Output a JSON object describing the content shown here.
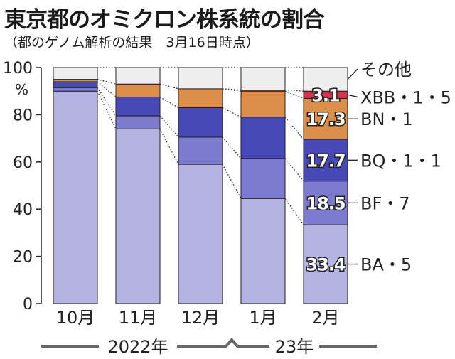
{
  "title": "東京都のオミクロン株系統の割合",
  "subtitle": "（都のゲノム解析の結果　3月16日時点）",
  "chart_data": {
    "type": "bar",
    "stacked": true,
    "ylim": [
      0,
      100
    ],
    "yticks": [
      0,
      20,
      40,
      60,
      80,
      100
    ],
    "yunit": "%",
    "categories": [
      "10月",
      "11月",
      "12月",
      "1月",
      "2月"
    ],
    "year_labels": [
      {
        "label": "2022年",
        "from": 0,
        "to": 2
      },
      {
        "label": "23年",
        "from": 3,
        "to": 4
      }
    ],
    "series": [
      {
        "name": "BA・5",
        "color": "#b4b4e2",
        "values": [
          90.0,
          74.0,
          59.0,
          44.5,
          33.4
        ],
        "label": "33.4"
      },
      {
        "name": "BF・7",
        "color": "#7b7bd0",
        "values": [
          1.5,
          5.5,
          11.5,
          17.0,
          18.5
        ],
        "label": "18.5"
      },
      {
        "name": "BQ・1・1",
        "color": "#4848b8",
        "values": [
          2.5,
          8.0,
          12.5,
          17.5,
          17.7
        ],
        "label": "17.7"
      },
      {
        "name": "BN・1",
        "color": "#dc8f4a",
        "values": [
          1.0,
          5.5,
          8.0,
          11.0,
          17.3
        ],
        "label": "17.3"
      },
      {
        "name": "XBB・1・5",
        "color": "#d2334a",
        "values": [
          0.0,
          0.0,
          0.0,
          0.5,
          3.1
        ],
        "label": "3.1"
      },
      {
        "name": "その他",
        "color": "#eeeeee",
        "values": [
          5.0,
          7.0,
          9.0,
          9.5,
          10.0
        ],
        "label": ""
      }
    ]
  }
}
